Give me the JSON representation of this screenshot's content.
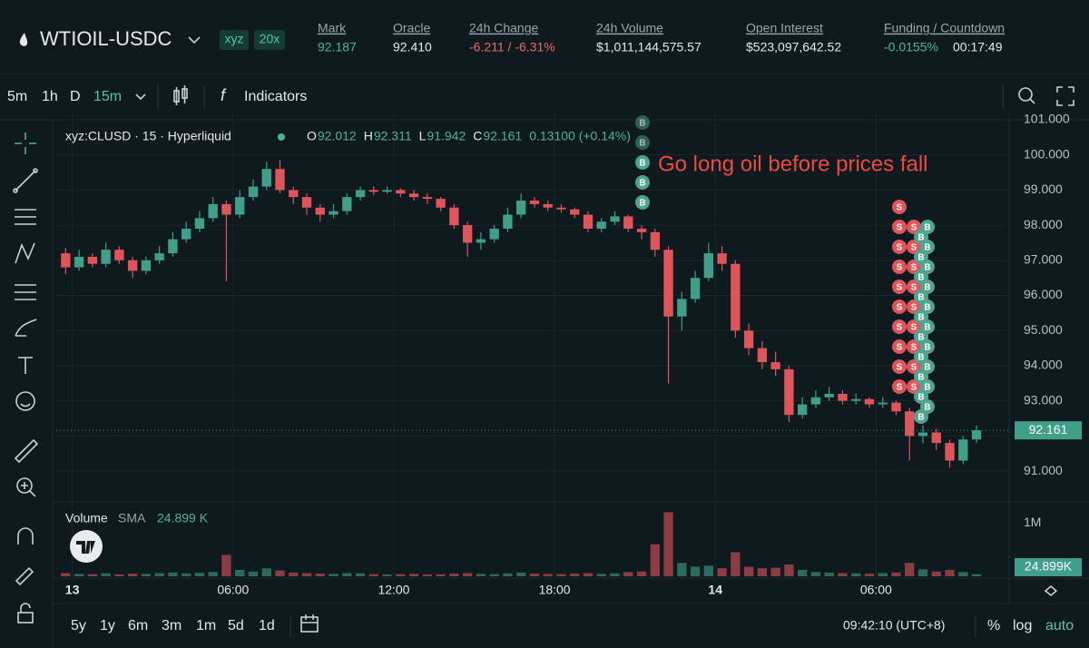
{
  "header": {
    "symbol": "WTIOIL-USDC",
    "badges": [
      "xyz",
      "20x"
    ],
    "stats": [
      {
        "label": "Mark",
        "value": "92.187",
        "color": "#4fb39c"
      },
      {
        "label": "Oracle",
        "value": "92.410",
        "color": "#e6e9eb"
      },
      {
        "label": "24h Change",
        "value": "-6.211 / -6.31%",
        "color": "#ed6a6f"
      },
      {
        "label": "24h Volume",
        "value": "$1,011,144,575.57",
        "color": "#e6e9eb"
      },
      {
        "label": "Open Interest",
        "value": "$523,097,642.52",
        "color": "#e6e9eb"
      },
      {
        "label": "Funding / Countdown",
        "value": "-0.0155%",
        "color": "#4fb39c",
        "extra": "00:17:49"
      }
    ]
  },
  "toolbar": {
    "intervals": [
      "5m",
      "1h",
      "D",
      "15m"
    ],
    "indicators": "Indicators"
  },
  "footer": {
    "ranges": [
      "5y",
      "1y",
      "6m",
      "3m",
      "1m",
      "5d",
      "1d"
    ],
    "clock": "09:42:10 (UTC+8)",
    "options": [
      "%",
      "log",
      "auto"
    ]
  },
  "chart_data": {
    "type": "candlestick",
    "legend": {
      "symbol": "xyz:CLUSD · 15 · Hyperliquid",
      "open_label": "O",
      "open": 92.012,
      "high_label": "H",
      "high": 92.311,
      "low_label": "L",
      "low": 91.942,
      "close_label": "C",
      "close": 92.161,
      "change": "0.13100 (+0.14%)"
    },
    "annotation": "Go long oil before prices fall",
    "buy_marker": "B",
    "sell_marker": "S",
    "up_color": "#3f9f8b",
    "down_color": "#e0545b",
    "annotation_color": "#ef4a3f",
    "x": [
      -0.5,
      0,
      0.5,
      1,
      1.5,
      2,
      2.5,
      3,
      3.5,
      4,
      4.5,
      5,
      5.5,
      6,
      6.5,
      7,
      7.5,
      8,
      8.5,
      9,
      9.5,
      10,
      10.5,
      11,
      11.5,
      12,
      12.5,
      13,
      13.5,
      14,
      14.5,
      15,
      15.5,
      16,
      16.5,
      17,
      17.5,
      18,
      18.5,
      19,
      19.5,
      20,
      20.5,
      21,
      21.5,
      22,
      22.5,
      23,
      23.5,
      24,
      24.5,
      25,
      25.5,
      26,
      26.5,
      27,
      27.5,
      28,
      28.5,
      29,
      29.5,
      30,
      30.5,
      31,
      31.5,
      32,
      32.5,
      33,
      33.5
    ],
    "ohlc": [
      [
        97.2,
        97.35,
        96.6,
        96.8
      ],
      [
        96.8,
        97.3,
        96.7,
        97.1
      ],
      [
        97.1,
        97.2,
        96.8,
        96.9
      ],
      [
        96.9,
        97.5,
        96.8,
        97.3
      ],
      [
        97.3,
        97.4,
        96.9,
        97.0
      ],
      [
        97.0,
        97.1,
        96.5,
        96.7
      ],
      [
        96.7,
        97.1,
        96.6,
        97.0
      ],
      [
        97.0,
        97.4,
        96.9,
        97.2
      ],
      [
        97.2,
        97.8,
        97.1,
        97.6
      ],
      [
        97.6,
        98.1,
        97.5,
        97.9
      ],
      [
        97.9,
        98.4,
        97.8,
        98.2
      ],
      [
        98.2,
        98.8,
        98.1,
        98.6
      ],
      [
        98.6,
        98.7,
        96.4,
        98.3
      ],
      [
        98.3,
        99.0,
        98.2,
        98.8
      ],
      [
        98.8,
        99.3,
        98.7,
        99.1
      ],
      [
        99.1,
        99.8,
        99.0,
        99.6
      ],
      [
        99.6,
        99.85,
        98.9,
        99.0
      ],
      [
        99.0,
        99.1,
        98.6,
        98.8
      ],
      [
        98.8,
        98.9,
        98.3,
        98.5
      ],
      [
        98.5,
        98.6,
        98.1,
        98.3
      ],
      [
        98.3,
        98.6,
        98.2,
        98.4
      ],
      [
        98.4,
        98.9,
        98.3,
        98.8
      ],
      [
        98.8,
        99.1,
        98.7,
        99.0
      ],
      [
        99.0,
        99.1,
        98.85,
        98.95
      ],
      [
        98.95,
        99.1,
        98.9,
        99.0
      ],
      [
        99.0,
        99.05,
        98.8,
        98.9
      ],
      [
        98.9,
        99.0,
        98.7,
        98.8
      ],
      [
        98.8,
        98.9,
        98.6,
        98.75
      ],
      [
        98.75,
        98.8,
        98.4,
        98.5
      ],
      [
        98.5,
        98.6,
        97.9,
        98.0
      ],
      [
        98.0,
        98.1,
        97.1,
        97.5
      ],
      [
        97.5,
        97.8,
        97.3,
        97.6
      ],
      [
        97.6,
        98.0,
        97.5,
        97.9
      ],
      [
        97.9,
        98.5,
        97.8,
        98.3
      ],
      [
        98.3,
        98.9,
        98.2,
        98.7
      ],
      [
        98.7,
        98.8,
        98.5,
        98.6
      ],
      [
        98.6,
        98.7,
        98.4,
        98.5
      ],
      [
        98.5,
        98.6,
        98.35,
        98.45
      ],
      [
        98.45,
        98.5,
        98.2,
        98.3
      ],
      [
        98.3,
        98.4,
        97.8,
        97.9
      ],
      [
        97.9,
        98.2,
        97.8,
        98.1
      ],
      [
        98.1,
        98.4,
        98.0,
        98.25
      ],
      [
        98.25,
        98.3,
        97.8,
        97.9
      ],
      [
        97.9,
        98.0,
        97.6,
        97.8
      ],
      [
        97.8,
        97.9,
        97.1,
        97.3
      ],
      [
        97.3,
        97.4,
        93.5,
        95.4
      ],
      [
        95.4,
        96.1,
        95.0,
        95.9
      ],
      [
        95.9,
        96.7,
        95.8,
        96.5
      ],
      [
        96.5,
        97.5,
        96.4,
        97.2
      ],
      [
        97.2,
        97.4,
        96.7,
        96.9
      ],
      [
        96.9,
        97.0,
        94.8,
        95.0
      ],
      [
        95.0,
        95.2,
        94.3,
        94.5
      ],
      [
        94.5,
        94.7,
        93.9,
        94.1
      ],
      [
        94.1,
        94.4,
        93.7,
        93.9
      ],
      [
        93.9,
        94.0,
        92.4,
        92.6
      ],
      [
        92.6,
        93.1,
        92.5,
        92.9
      ],
      [
        92.9,
        93.3,
        92.8,
        93.1
      ],
      [
        93.1,
        93.4,
        93.0,
        93.2
      ],
      [
        93.2,
        93.3,
        92.9,
        93.0
      ],
      [
        93.0,
        93.2,
        92.9,
        93.05
      ],
      [
        93.05,
        93.1,
        92.8,
        92.9
      ],
      [
        92.9,
        93.1,
        92.8,
        92.95
      ],
      [
        92.95,
        93.0,
        92.6,
        92.7
      ],
      [
        92.7,
        92.8,
        91.3,
        92.0
      ],
      [
        92.0,
        92.3,
        91.8,
        92.1
      ],
      [
        92.1,
        92.2,
        91.6,
        91.8
      ],
      [
        91.8,
        91.9,
        91.1,
        91.3
      ],
      [
        91.3,
        92.0,
        91.2,
        91.9
      ],
      [
        91.9,
        92.3,
        91.8,
        92.161
      ]
    ],
    "volume": [
      60000,
      45000,
      40000,
      55000,
      35000,
      50000,
      45000,
      60000,
      70000,
      55000,
      65000,
      80000,
      400000,
      120000,
      90000,
      150000,
      110000,
      70000,
      60000,
      50000,
      45000,
      60000,
      55000,
      40000,
      35000,
      40000,
      45000,
      35000,
      40000,
      50000,
      60000,
      45000,
      40000,
      55000,
      70000,
      50000,
      45000,
      40000,
      50000,
      60000,
      45000,
      55000,
      80000,
      90000,
      600000,
      1200000,
      250000,
      180000,
      200000,
      150000,
      450000,
      180000,
      150000,
      160000,
      220000,
      120000,
      80000,
      70000,
      60000,
      55000,
      50000,
      60000,
      70000,
      250000,
      130000,
      90000,
      120000,
      80000,
      40000
    ],
    "xlim": [
      -0.6,
      34.9
    ],
    "xticks": [
      {
        "value": 0,
        "label": "13"
      },
      {
        "value": 6,
        "label": "06:00"
      },
      {
        "value": 12,
        "label": "12:00"
      },
      {
        "value": 18,
        "label": "18:00"
      },
      {
        "value": 24,
        "label": "14"
      },
      {
        "value": 30,
        "label": "06:00"
      }
    ],
    "ylim": [
      90.15,
      101.18
    ],
    "yticks": [
      {
        "value": 91,
        "label": "91.000"
      },
      {
        "value": 92,
        "label": "92.000"
      },
      {
        "value": 93,
        "label": "93.000"
      },
      {
        "value": 94,
        "label": "94.000"
      },
      {
        "value": 95,
        "label": "95.000"
      },
      {
        "value": 96,
        "label": "96.000"
      },
      {
        "value": 97,
        "label": "97.000"
      },
      {
        "value": 98,
        "label": "98.000"
      },
      {
        "value": 99,
        "label": "99.000"
      },
      {
        "value": 100,
        "label": "100.000"
      },
      {
        "value": 101,
        "label": "101.000"
      }
    ],
    "grid": true,
    "volume_label": "Volume",
    "sma_label": "SMA",
    "sma_value": "24.899 K",
    "sma_axis_label": "24.899K",
    "vlim": [
      0,
      1360000
    ],
    "vticks": [
      {
        "value": 1000000,
        "label": "1M"
      }
    ]
  }
}
